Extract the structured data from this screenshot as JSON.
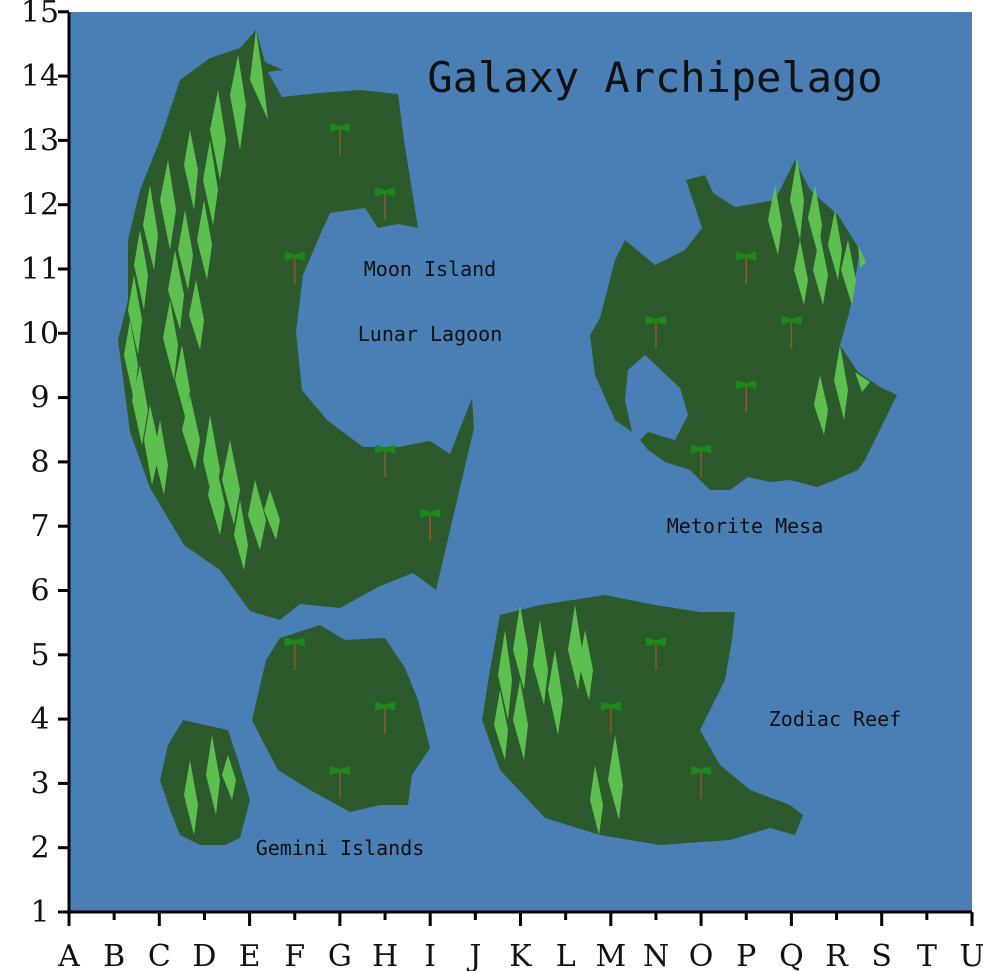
{
  "title": "Galaxy Archipelago",
  "axes": {
    "x_labels": [
      "A",
      "B",
      "C",
      "D",
      "E",
      "F",
      "G",
      "H",
      "I",
      "J",
      "K",
      "L",
      "M",
      "N",
      "O",
      "P",
      "Q",
      "R",
      "S",
      "T",
      "U"
    ],
    "y_labels": [
      "1",
      "2",
      "3",
      "4",
      "5",
      "6",
      "7",
      "8",
      "9",
      "10",
      "11",
      "12",
      "13",
      "14",
      "15"
    ]
  },
  "labels": {
    "moon_island": "Moon Island",
    "lunar_lagoon": "Lunar Lagoon",
    "metorite_mesa": "Metorite Mesa",
    "zodiac_reef": "Zodiac Reef",
    "gemini_islands": "Gemini Islands"
  },
  "colors": {
    "water": "#4a7fb5",
    "land": "#2d5a2d",
    "forest": "#5cbf4f",
    "palm_leaf": "#1a8a1a",
    "palm_trunk": "#8b5a2b",
    "axis": "#000000"
  },
  "palm_trees": [
    {
      "col": "G",
      "row": 13.2
    },
    {
      "col": "H",
      "row": 12.2
    },
    {
      "col": "F",
      "row": 11.2
    },
    {
      "col": "H",
      "row": 8.2
    },
    {
      "col": "I",
      "row": 7.2
    },
    {
      "col": "P",
      "row": 11.2
    },
    {
      "col": "N",
      "row": 10.2
    },
    {
      "col": "Q",
      "row": 10.2
    },
    {
      "col": "P",
      "row": 9.2
    },
    {
      "col": "O",
      "row": 8.2
    },
    {
      "col": "F",
      "row": 5.2
    },
    {
      "col": "H",
      "row": 4.2
    },
    {
      "col": "G",
      "row": 3.2
    },
    {
      "col": "N",
      "row": 5.2
    },
    {
      "col": "M",
      "row": 4.2
    },
    {
      "col": "O",
      "row": 3.2
    }
  ]
}
